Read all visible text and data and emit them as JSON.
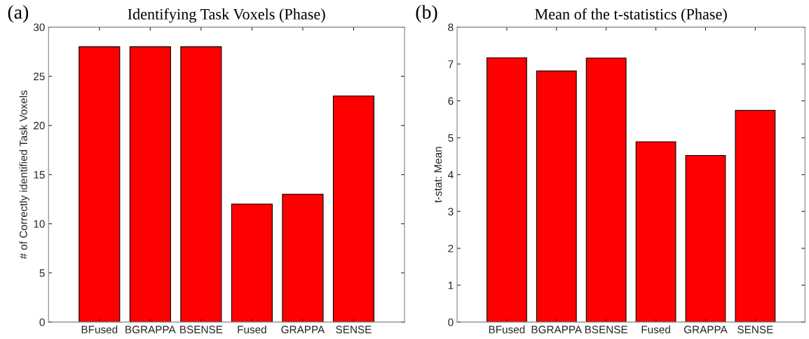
{
  "chart_data": [
    {
      "type": "bar",
      "title": "Identifying Task Voxels (Phase)",
      "ylabel": "# of Correctly identified Task Voxels",
      "annotations": [
        "(a)"
      ],
      "categories": [
        "BFused",
        "BGRAPPA",
        "BSENSE",
        "Fused",
        "GRAPPA",
        "SENSE"
      ],
      "values": [
        28,
        28,
        28,
        12,
        13,
        23
      ],
      "color": "#ff0000",
      "ylim": [
        0,
        30
      ],
      "yticks": [
        0,
        5,
        10,
        15,
        20,
        25,
        30
      ],
      "grid": false,
      "legend": false
    },
    {
      "type": "bar",
      "title": "Mean of the t-statistics (Phase)",
      "ylabel": "t-stat: Mean",
      "annotations": [
        "(b)"
      ],
      "categories": [
        "BFused",
        "BGRAPPA",
        "BSENSE",
        "Fused",
        "GRAPPA",
        "SENSE"
      ],
      "values": [
        7.17,
        6.81,
        7.16,
        4.89,
        4.52,
        5.74
      ],
      "color": "#ff0000",
      "ylim": [
        0,
        8
      ],
      "yticks": [
        0,
        1,
        2,
        3,
        4,
        5,
        6,
        7,
        8
      ],
      "grid": false,
      "legend": false
    }
  ]
}
